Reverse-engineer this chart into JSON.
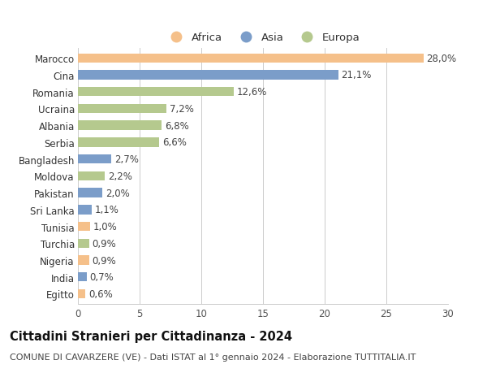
{
  "categories": [
    "Marocco",
    "Cina",
    "Romania",
    "Ucraina",
    "Albania",
    "Serbia",
    "Bangladesh",
    "Moldova",
    "Pakistan",
    "Sri Lanka",
    "Tunisia",
    "Turchia",
    "Nigeria",
    "India",
    "Egitto"
  ],
  "values": [
    28.0,
    21.1,
    12.6,
    7.2,
    6.8,
    6.6,
    2.7,
    2.2,
    2.0,
    1.1,
    1.0,
    0.9,
    0.9,
    0.7,
    0.6
  ],
  "labels": [
    "28,0%",
    "21,1%",
    "12,6%",
    "7,2%",
    "6,8%",
    "6,6%",
    "2,7%",
    "2,2%",
    "2,0%",
    "1,1%",
    "1,0%",
    "0,9%",
    "0,9%",
    "0,7%",
    "0,6%"
  ],
  "continents": [
    "Africa",
    "Asia",
    "Europa",
    "Europa",
    "Europa",
    "Europa",
    "Asia",
    "Europa",
    "Asia",
    "Asia",
    "Africa",
    "Europa",
    "Africa",
    "Asia",
    "Africa"
  ],
  "colors": {
    "Africa": "#F5C08A",
    "Asia": "#7B9DC9",
    "Europa": "#B5C98E"
  },
  "legend_labels": [
    "Africa",
    "Asia",
    "Europa"
  ],
  "xlim": [
    0,
    30
  ],
  "xticks": [
    0,
    5,
    10,
    15,
    20,
    25,
    30
  ],
  "title": "Cittadini Stranieri per Cittadinanza - 2024",
  "subtitle": "COMUNE DI CAVARZERE (VE) - Dati ISTAT al 1° gennaio 2024 - Elaborazione TUTTITALIA.IT",
  "background_color": "#ffffff",
  "grid_color": "#cccccc",
  "bar_label_fontsize": 8.5,
  "ytick_fontsize": 8.5,
  "xtick_fontsize": 8.5,
  "legend_fontsize": 9.5,
  "title_fontsize": 10.5,
  "subtitle_fontsize": 8.0,
  "bar_height": 0.55
}
